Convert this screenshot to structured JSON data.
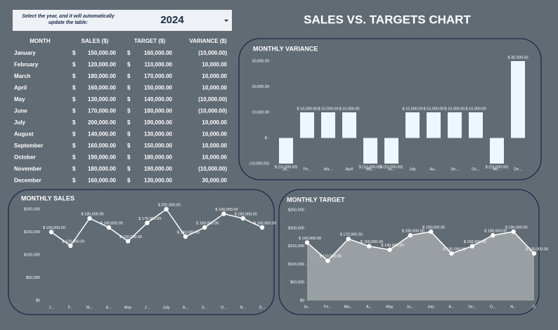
{
  "header": {
    "prompt_line1": "Select the year, and it will automatically",
    "prompt_line2": "update the table:",
    "year": "2024",
    "title": "SALES VS. TARGETS CHART"
  },
  "table": {
    "columns": [
      "MONTH",
      "SALES ($)",
      "TARGET ($)",
      "VARIANCE ($)"
    ],
    "rows": [
      [
        "January",
        "$",
        "150,000.00",
        "$",
        "160,000.00",
        "(10,000.00)"
      ],
      [
        "February",
        "$",
        "120,000.00",
        "$",
        "110,000.00",
        "10,000.00"
      ],
      [
        "March",
        "$",
        "180,000.00",
        "$",
        "170,000.00",
        "10,000.00"
      ],
      [
        "April",
        "$",
        "160,000.00",
        "$",
        "150,000.00",
        "10,000.00"
      ],
      [
        "May",
        "$",
        "130,000.00",
        "$",
        "140,000.00",
        "(10,000.00)"
      ],
      [
        "June",
        "$",
        "170,000.00",
        "$",
        "180,000.00",
        "(10,000.00)"
      ],
      [
        "July",
        "$",
        "200,000.00",
        "$",
        "190,000.00",
        "10,000.00"
      ],
      [
        "August",
        "$",
        "140,000.00",
        "$",
        "130,000.00",
        "10,000.00"
      ],
      [
        "September",
        "$",
        "160,000.00",
        "$",
        "150,000.00",
        "10,000.00"
      ],
      [
        "October",
        "$",
        "190,000.00",
        "$",
        "180,000.00",
        "10,000.00"
      ],
      [
        "November",
        "$",
        "180,000.00",
        "$",
        "190,000.00",
        "(10,000.00)"
      ],
      [
        "December",
        "$",
        "160,000.00",
        "$",
        "130,000.00",
        "30,000.00"
      ]
    ]
  },
  "chart_data": [
    {
      "type": "bar",
      "title": "MONTHLY VARIANCE",
      "color": "#eef6ff",
      "categories": [
        "Ja...",
        "Fe...",
        "Ma...",
        "April",
        "Ma...",
        "Ju...",
        "July",
        "Au...",
        "Se...",
        "Oc...",
        "No...",
        "De..."
      ],
      "values": [
        -10000,
        10000,
        10000,
        10000,
        -10000,
        -10000,
        10000,
        10000,
        10000,
        10000,
        -10000,
        30000
      ],
      "value_labels": [
        "$ (10,000.00)",
        "$ 10,000.00",
        "$ 10,000.00",
        "$ 10,000.00",
        "$ (10,000.00)",
        "$ (10,000.00)",
        "$ 10,000.00",
        "$ 10,000.00",
        "$ 10,000.00",
        "$ 10,000.00",
        "$ (10,000.00)",
        "$ 30,000.00"
      ],
      "ylim": [
        -10000,
        30000
      ],
      "yticks": [
        {
          "value": -10000,
          "label": "(10,000.00)"
        },
        {
          "value": 0,
          "label": "$ -"
        },
        {
          "value": 10000,
          "label": "10,000.00"
        },
        {
          "value": 20000,
          "label": "20,000.00"
        },
        {
          "value": 30000,
          "label": "30,000.00"
        }
      ]
    },
    {
      "type": "line",
      "title": "MONTHLY SALES",
      "color": "#ffffff",
      "categories": [
        "J...",
        "F...",
        "M...",
        "A...",
        "May",
        "J...",
        "July",
        "A...",
        "S...",
        "O...",
        "N...",
        "D..."
      ],
      "values": [
        150000,
        120000,
        180000,
        160000,
        130000,
        170000,
        200000,
        140000,
        160000,
        190000,
        180000,
        160000
      ],
      "value_labels": [
        "$ 150,000.00",
        "$ 120,000.00",
        "$ 180,000.00",
        "$ 160,000.00",
        "$ 130,000.00",
        "$ 170,000.00",
        "$ 200,000.00",
        "$ 140,000.00",
        "$ 160,000.00",
        "$ 190,000.00",
        "$ 180,000.00",
        "$ 160,000.00"
      ],
      "ylim": [
        0,
        200000
      ],
      "yticks": [
        {
          "value": 0,
          "label": "$0"
        },
        {
          "value": 50000,
          "label": "$50,000"
        },
        {
          "value": 100000,
          "label": "$100,000"
        },
        {
          "value": 150000,
          "label": "$150,000"
        },
        {
          "value": 200000,
          "label": "$200,000"
        }
      ]
    },
    {
      "type": "area",
      "title": "MONTHLY TARGET",
      "color": "#ffffff",
      "fill": "#9a9fa4",
      "categories": [
        "Ja...",
        "Fe...",
        "Ma...",
        "A...",
        "May",
        "Ju...",
        "July",
        "A...",
        "Se...",
        "O...",
        "N...",
        "D"
      ],
      "values": [
        160000,
        110000,
        170000,
        150000,
        140000,
        180000,
        190000,
        130000,
        150000,
        180000,
        190000,
        130000
      ],
      "value_labels": [
        "$ 160,000.00",
        "$ 110,000.00",
        "$ 170,000.00",
        "$ 150,000.00",
        "$ 140,000.00",
        "$ 180,000.00",
        "$ 190,000.00",
        "$ 130,000.00",
        "$ 150,000.00",
        "$ 180,000.00",
        "$ 190,000.00",
        "$ 130,000.00"
      ],
      "ylim": [
        0,
        250000
      ],
      "yticks": [
        {
          "value": 0,
          "label": "$0"
        },
        {
          "value": 50000,
          "label": "$50,000"
        },
        {
          "value": 100000,
          "label": "$100,000"
        },
        {
          "value": 150000,
          "label": "$150,000"
        },
        {
          "value": 200000,
          "label": "$200,000"
        },
        {
          "value": 250000,
          "label": "$250,000"
        }
      ]
    }
  ]
}
